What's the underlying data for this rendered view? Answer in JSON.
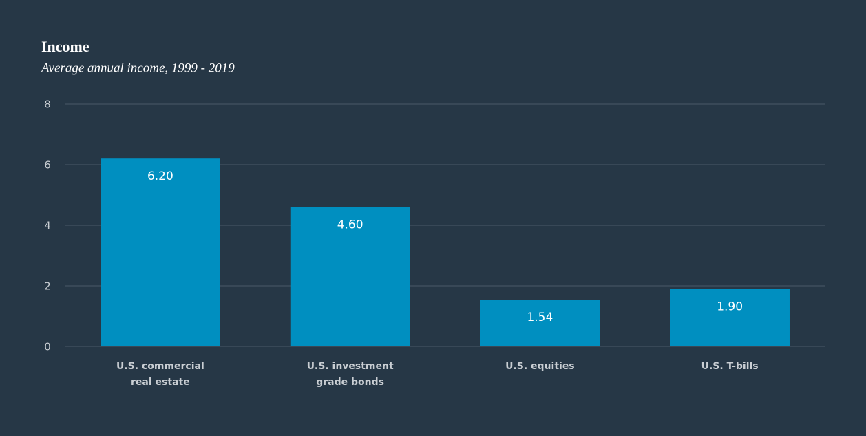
{
  "chart_data": {
    "type": "bar",
    "title": "Income",
    "subtitle": "Average annual income, 1999 - 2019",
    "categories": [
      [
        "U.S. commercial",
        "real estate"
      ],
      [
        "U.S. investment",
        "grade bonds"
      ],
      [
        "U.S. equities"
      ],
      [
        "U.S. T-bills"
      ]
    ],
    "values": [
      6.2,
      4.6,
      1.54,
      1.9
    ],
    "value_labels": [
      "6.20",
      "4.60",
      "1.54",
      "1.90"
    ],
    "color": "#008fc0",
    "ylim": [
      0,
      8
    ],
    "yticks": [
      0,
      2,
      4,
      6,
      8
    ],
    "grid": true
  }
}
